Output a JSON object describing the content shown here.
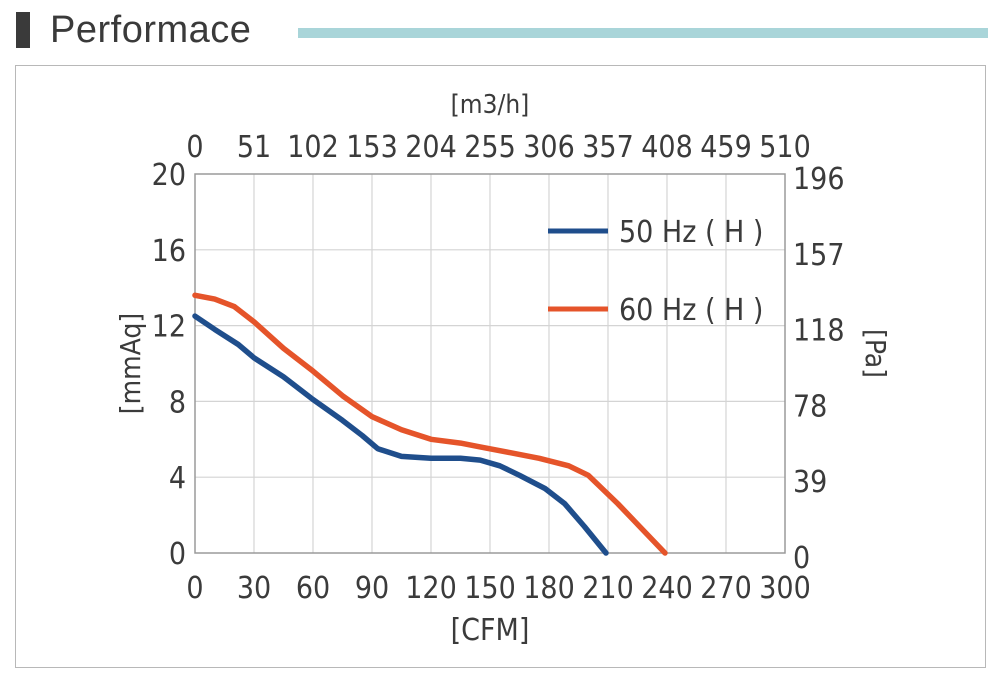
{
  "header": {
    "title": "Performace",
    "rule_color": "#a9d5d9",
    "bar_color": "#3a3a3a"
  },
  "chart_data": {
    "type": "line",
    "title": "",
    "xlabel": "[CFM]",
    "ylabel": "[mmAq]",
    "x2label": "[m3/h]",
    "y2label": "[Pa]",
    "xlim": [
      0,
      300
    ],
    "ylim": [
      0,
      20
    ],
    "x_ticks": [
      "0",
      "30",
      "60",
      "90",
      "120",
      "150",
      "180",
      "210",
      "240",
      "270",
      "300"
    ],
    "y_ticks": [
      "0",
      "4",
      "8",
      "12",
      "16",
      "20"
    ],
    "x2_ticks": [
      "0",
      "51",
      "102",
      "153",
      "204",
      "255",
      "306",
      "357",
      "408",
      "459",
      "510"
    ],
    "y2_ticks": [
      "0",
      "39",
      "78",
      "118",
      "157",
      "196"
    ],
    "grid": true,
    "legend_position": "top-right",
    "series": [
      {
        "name": "50 Hz ( H )",
        "color": "#1f4e8c",
        "x": [
          0,
          10,
          22,
          30,
          45,
          60,
          75,
          85,
          93,
          105,
          120,
          135,
          145,
          155,
          165,
          178,
          188,
          198,
          209
        ],
        "y": [
          12.5,
          11.8,
          11.0,
          10.3,
          9.3,
          8.1,
          7.0,
          6.2,
          5.5,
          5.1,
          5.0,
          5.0,
          4.9,
          4.6,
          4.1,
          3.4,
          2.6,
          1.4,
          0.0
        ]
      },
      {
        "name": "60 Hz ( H )",
        "color": "#e5542a",
        "x": [
          0,
          10,
          20,
          30,
          45,
          60,
          75,
          90,
          105,
          120,
          135,
          145,
          160,
          175,
          190,
          200,
          215,
          239
        ],
        "y": [
          13.6,
          13.4,
          13.0,
          12.2,
          10.8,
          9.6,
          8.3,
          7.2,
          6.5,
          6.0,
          5.8,
          5.6,
          5.3,
          5.0,
          4.6,
          4.1,
          2.6,
          0.0
        ]
      }
    ]
  }
}
